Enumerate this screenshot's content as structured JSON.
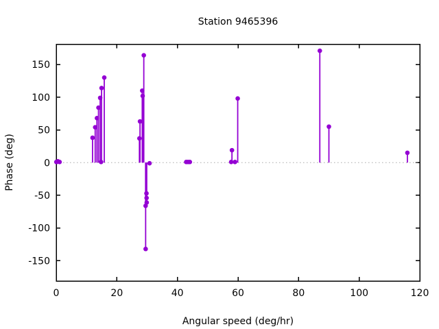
{
  "title": "Station 9465396",
  "chart_data": {
    "type": "scatter",
    "style": "impulses-with-points (stem plot)",
    "title": "Station 9465396",
    "xlabel": "Angular speed (deg/hr)",
    "ylabel": "Phase (deg)",
    "xlim": [
      0,
      120
    ],
    "ylim": [
      -181,
      181
    ],
    "xticks": [
      0,
      20,
      40,
      60,
      80,
      100,
      120
    ],
    "yticks": [
      -150,
      -100,
      -50,
      0,
      50,
      100,
      150
    ],
    "grid": false,
    "legend": "none",
    "zero_line": "dotted",
    "accent_color": "#9400d3",
    "zero_line_color": "#a8a8a8",
    "axis_color": "#000000",
    "points": [
      [
        0.04,
        1
      ],
      [
        0.08,
        1
      ],
      [
        0.54,
        2
      ],
      [
        1.1,
        1
      ],
      [
        11.98,
        38
      ],
      [
        12.85,
        54
      ],
      [
        13.43,
        68
      ],
      [
        13.94,
        84
      ],
      [
        14.5,
        99
      ],
      [
        14.8,
        1
      ],
      [
        14.96,
        114
      ],
      [
        15.85,
        130
      ],
      [
        27.45,
        37
      ],
      [
        27.65,
        63
      ],
      [
        28.38,
        110
      ],
      [
        28.53,
        102
      ],
      [
        28.9,
        164
      ],
      [
        29.5,
        -66
      ],
      [
        29.51,
        -132
      ],
      [
        29.78,
        -47
      ],
      [
        29.82,
        -54
      ],
      [
        29.86,
        -61
      ],
      [
        30.8,
        -1
      ],
      [
        42.9,
        1
      ],
      [
        43.5,
        1
      ],
      [
        44.1,
        1
      ],
      [
        57.75,
        1
      ],
      [
        58.0,
        19
      ],
      [
        59.0,
        1
      ],
      [
        59.9,
        98
      ],
      [
        87.0,
        171
      ],
      [
        90.0,
        55
      ],
      [
        115.9,
        15
      ]
    ]
  }
}
